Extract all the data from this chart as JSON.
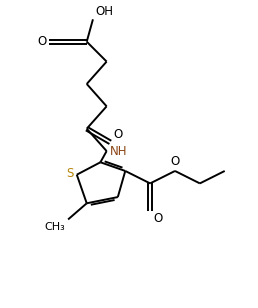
{
  "background_color": "#ffffff",
  "bond_color": "#000000",
  "S_color": "#b8860b",
  "NH_color": "#8B4513",
  "line_width": 1.4,
  "figsize": [
    2.58,
    3.08
  ],
  "dpi": 100,
  "xlim": [
    0,
    10
  ],
  "ylim": [
    0,
    12
  ]
}
